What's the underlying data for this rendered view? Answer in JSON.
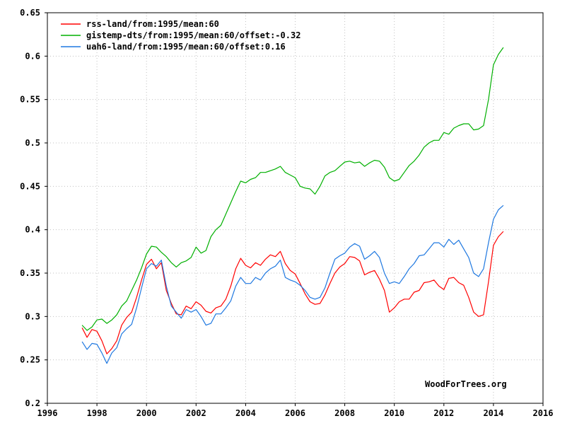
{
  "chart_data": {
    "type": "line",
    "title": "",
    "xlabel": "",
    "ylabel": "",
    "xlim": [
      1996,
      2016
    ],
    "ylim": [
      0.2,
      0.65
    ],
    "x_ticks": [
      "1996",
      "1998",
      "2000",
      "2002",
      "2004",
      "2006",
      "2008",
      "2010",
      "2012",
      "2014",
      "2016"
    ],
    "y_ticks": [
      "0.2",
      "0.25",
      "0.3",
      "0.35",
      "0.4",
      "0.45",
      "0.5",
      "0.55",
      "0.6",
      "0.65"
    ],
    "grid": true,
    "legend_position": "top-left",
    "annotation": "WoodForTrees.org",
    "series": [
      {
        "name": "rss-land/from:1995/mean:60",
        "color": "#ff0000",
        "points": [
          [
            1997.4,
            0.287
          ],
          [
            1997.6,
            0.276
          ],
          [
            1997.8,
            0.285
          ],
          [
            1998.0,
            0.283
          ],
          [
            1998.2,
            0.272
          ],
          [
            1998.4,
            0.257
          ],
          [
            1998.6,
            0.263
          ],
          [
            1998.8,
            0.272
          ],
          [
            1999.0,
            0.29
          ],
          [
            1999.2,
            0.299
          ],
          [
            1999.4,
            0.305
          ],
          [
            1999.6,
            0.322
          ],
          [
            1999.8,
            0.342
          ],
          [
            2000.0,
            0.36
          ],
          [
            2000.2,
            0.366
          ],
          [
            2000.4,
            0.355
          ],
          [
            2000.6,
            0.362
          ],
          [
            2000.8,
            0.33
          ],
          [
            2001.0,
            0.315
          ],
          [
            2001.2,
            0.303
          ],
          [
            2001.4,
            0.302
          ],
          [
            2001.6,
            0.312
          ],
          [
            2001.8,
            0.309
          ],
          [
            2002.0,
            0.317
          ],
          [
            2002.2,
            0.313
          ],
          [
            2002.4,
            0.306
          ],
          [
            2002.6,
            0.304
          ],
          [
            2002.8,
            0.31
          ],
          [
            2003.0,
            0.312
          ],
          [
            2003.2,
            0.32
          ],
          [
            2003.4,
            0.335
          ],
          [
            2003.6,
            0.355
          ],
          [
            2003.8,
            0.367
          ],
          [
            2004.0,
            0.359
          ],
          [
            2004.2,
            0.356
          ],
          [
            2004.4,
            0.362
          ],
          [
            2004.6,
            0.359
          ],
          [
            2004.8,
            0.366
          ],
          [
            2005.0,
            0.371
          ],
          [
            2005.2,
            0.369
          ],
          [
            2005.4,
            0.375
          ],
          [
            2005.6,
            0.361
          ],
          [
            2005.8,
            0.353
          ],
          [
            2006.0,
            0.349
          ],
          [
            2006.2,
            0.338
          ],
          [
            2006.4,
            0.326
          ],
          [
            2006.6,
            0.317
          ],
          [
            2006.8,
            0.314
          ],
          [
            2007.0,
            0.315
          ],
          [
            2007.2,
            0.325
          ],
          [
            2007.4,
            0.338
          ],
          [
            2007.6,
            0.35
          ],
          [
            2007.8,
            0.357
          ],
          [
            2008.0,
            0.361
          ],
          [
            2008.2,
            0.369
          ],
          [
            2008.4,
            0.368
          ],
          [
            2008.6,
            0.364
          ],
          [
            2008.8,
            0.348
          ],
          [
            2009.0,
            0.351
          ],
          [
            2009.2,
            0.353
          ],
          [
            2009.4,
            0.343
          ],
          [
            2009.6,
            0.33
          ],
          [
            2009.8,
            0.305
          ],
          [
            2010.0,
            0.31
          ],
          [
            2010.2,
            0.317
          ],
          [
            2010.4,
            0.32
          ],
          [
            2010.6,
            0.32
          ],
          [
            2010.8,
            0.328
          ],
          [
            2011.0,
            0.33
          ],
          [
            2011.2,
            0.339
          ],
          [
            2011.4,
            0.34
          ],
          [
            2011.6,
            0.342
          ],
          [
            2011.8,
            0.335
          ],
          [
            2012.0,
            0.331
          ],
          [
            2012.2,
            0.344
          ],
          [
            2012.4,
            0.345
          ],
          [
            2012.6,
            0.339
          ],
          [
            2012.8,
            0.336
          ],
          [
            2013.0,
            0.322
          ],
          [
            2013.2,
            0.305
          ],
          [
            2013.4,
            0.3
          ],
          [
            2013.6,
            0.302
          ],
          [
            2013.8,
            0.34
          ],
          [
            2014.0,
            0.382
          ],
          [
            2014.2,
            0.392
          ],
          [
            2014.4,
            0.398
          ]
        ]
      },
      {
        "name": "gistemp-dts/from:1995/mean:60/offset:-0.32",
        "color": "#00b000",
        "points": [
          [
            1997.4,
            0.29
          ],
          [
            1997.6,
            0.284
          ],
          [
            1997.8,
            0.288
          ],
          [
            1998.0,
            0.296
          ],
          [
            1998.2,
            0.297
          ],
          [
            1998.4,
            0.292
          ],
          [
            1998.6,
            0.296
          ],
          [
            1998.8,
            0.302
          ],
          [
            1999.0,
            0.312
          ],
          [
            1999.2,
            0.318
          ],
          [
            1999.4,
            0.33
          ],
          [
            1999.6,
            0.342
          ],
          [
            1999.8,
            0.356
          ],
          [
            2000.0,
            0.372
          ],
          [
            2000.2,
            0.381
          ],
          [
            2000.4,
            0.38
          ],
          [
            2000.6,
            0.374
          ],
          [
            2000.8,
            0.369
          ],
          [
            2001.0,
            0.362
          ],
          [
            2001.2,
            0.357
          ],
          [
            2001.4,
            0.362
          ],
          [
            2001.6,
            0.364
          ],
          [
            2001.8,
            0.368
          ],
          [
            2002.0,
            0.38
          ],
          [
            2002.2,
            0.373
          ],
          [
            2002.4,
            0.376
          ],
          [
            2002.6,
            0.392
          ],
          [
            2002.8,
            0.4
          ],
          [
            2003.0,
            0.405
          ],
          [
            2003.2,
            0.418
          ],
          [
            2003.4,
            0.431
          ],
          [
            2003.6,
            0.444
          ],
          [
            2003.8,
            0.456
          ],
          [
            2004.0,
            0.454
          ],
          [
            2004.2,
            0.458
          ],
          [
            2004.4,
            0.46
          ],
          [
            2004.6,
            0.466
          ],
          [
            2004.8,
            0.466
          ],
          [
            2005.0,
            0.468
          ],
          [
            2005.2,
            0.47
          ],
          [
            2005.4,
            0.473
          ],
          [
            2005.6,
            0.466
          ],
          [
            2005.8,
            0.463
          ],
          [
            2006.0,
            0.46
          ],
          [
            2006.2,
            0.45
          ],
          [
            2006.4,
            0.448
          ],
          [
            2006.6,
            0.447
          ],
          [
            2006.8,
            0.441
          ],
          [
            2007.0,
            0.45
          ],
          [
            2007.2,
            0.462
          ],
          [
            2007.4,
            0.466
          ],
          [
            2007.6,
            0.468
          ],
          [
            2007.8,
            0.473
          ],
          [
            2008.0,
            0.478
          ],
          [
            2008.2,
            0.479
          ],
          [
            2008.4,
            0.477
          ],
          [
            2008.6,
            0.478
          ],
          [
            2008.8,
            0.473
          ],
          [
            2009.0,
            0.477
          ],
          [
            2009.2,
            0.48
          ],
          [
            2009.4,
            0.479
          ],
          [
            2009.6,
            0.472
          ],
          [
            2009.8,
            0.46
          ],
          [
            2010.0,
            0.456
          ],
          [
            2010.2,
            0.458
          ],
          [
            2010.4,
            0.466
          ],
          [
            2010.6,
            0.474
          ],
          [
            2010.8,
            0.479
          ],
          [
            2011.0,
            0.486
          ],
          [
            2011.2,
            0.495
          ],
          [
            2011.4,
            0.5
          ],
          [
            2011.6,
            0.503
          ],
          [
            2011.8,
            0.503
          ],
          [
            2012.0,
            0.512
          ],
          [
            2012.2,
            0.51
          ],
          [
            2012.4,
            0.517
          ],
          [
            2012.6,
            0.52
          ],
          [
            2012.8,
            0.522
          ],
          [
            2013.0,
            0.522
          ],
          [
            2013.2,
            0.515
          ],
          [
            2013.4,
            0.516
          ],
          [
            2013.6,
            0.52
          ],
          [
            2013.8,
            0.55
          ],
          [
            2014.0,
            0.59
          ],
          [
            2014.2,
            0.602
          ],
          [
            2014.4,
            0.61
          ]
        ]
      },
      {
        "name": "uah6-land/from:1995/mean:60/offset:0.16",
        "color": "#1f78e0",
        "points": [
          [
            1997.4,
            0.271
          ],
          [
            1997.6,
            0.262
          ],
          [
            1997.8,
            0.269
          ],
          [
            1998.0,
            0.268
          ],
          [
            1998.2,
            0.258
          ],
          [
            1998.4,
            0.246
          ],
          [
            1998.6,
            0.258
          ],
          [
            1998.8,
            0.264
          ],
          [
            1999.0,
            0.28
          ],
          [
            1999.2,
            0.286
          ],
          [
            1999.4,
            0.291
          ],
          [
            1999.6,
            0.31
          ],
          [
            1999.8,
            0.333
          ],
          [
            2000.0,
            0.355
          ],
          [
            2000.2,
            0.361
          ],
          [
            2000.4,
            0.358
          ],
          [
            2000.6,
            0.365
          ],
          [
            2000.8,
            0.335
          ],
          [
            2001.0,
            0.312
          ],
          [
            2001.2,
            0.305
          ],
          [
            2001.4,
            0.298
          ],
          [
            2001.6,
            0.308
          ],
          [
            2001.8,
            0.305
          ],
          [
            2002.0,
            0.308
          ],
          [
            2002.2,
            0.3
          ],
          [
            2002.4,
            0.29
          ],
          [
            2002.6,
            0.292
          ],
          [
            2002.8,
            0.303
          ],
          [
            2003.0,
            0.303
          ],
          [
            2003.2,
            0.31
          ],
          [
            2003.4,
            0.318
          ],
          [
            2003.6,
            0.335
          ],
          [
            2003.8,
            0.345
          ],
          [
            2004.0,
            0.338
          ],
          [
            2004.2,
            0.338
          ],
          [
            2004.4,
            0.345
          ],
          [
            2004.6,
            0.342
          ],
          [
            2004.8,
            0.35
          ],
          [
            2005.0,
            0.355
          ],
          [
            2005.2,
            0.358
          ],
          [
            2005.4,
            0.365
          ],
          [
            2005.6,
            0.345
          ],
          [
            2005.8,
            0.342
          ],
          [
            2006.0,
            0.34
          ],
          [
            2006.2,
            0.336
          ],
          [
            2006.4,
            0.33
          ],
          [
            2006.6,
            0.322
          ],
          [
            2006.8,
            0.32
          ],
          [
            2007.0,
            0.322
          ],
          [
            2007.2,
            0.333
          ],
          [
            2007.4,
            0.35
          ],
          [
            2007.6,
            0.366
          ],
          [
            2007.8,
            0.37
          ],
          [
            2008.0,
            0.373
          ],
          [
            2008.2,
            0.38
          ],
          [
            2008.4,
            0.384
          ],
          [
            2008.6,
            0.381
          ],
          [
            2008.8,
            0.366
          ],
          [
            2009.0,
            0.37
          ],
          [
            2009.2,
            0.375
          ],
          [
            2009.4,
            0.368
          ],
          [
            2009.6,
            0.35
          ],
          [
            2009.8,
            0.338
          ],
          [
            2010.0,
            0.34
          ],
          [
            2010.2,
            0.338
          ],
          [
            2010.4,
            0.346
          ],
          [
            2010.6,
            0.355
          ],
          [
            2010.8,
            0.361
          ],
          [
            2011.0,
            0.37
          ],
          [
            2011.2,
            0.371
          ],
          [
            2011.4,
            0.378
          ],
          [
            2011.6,
            0.385
          ],
          [
            2011.8,
            0.385
          ],
          [
            2012.0,
            0.38
          ],
          [
            2012.2,
            0.389
          ],
          [
            2012.4,
            0.383
          ],
          [
            2012.6,
            0.388
          ],
          [
            2012.8,
            0.378
          ],
          [
            2013.0,
            0.368
          ],
          [
            2013.2,
            0.35
          ],
          [
            2013.4,
            0.346
          ],
          [
            2013.6,
            0.355
          ],
          [
            2013.8,
            0.385
          ],
          [
            2014.0,
            0.412
          ],
          [
            2014.2,
            0.423
          ],
          [
            2014.4,
            0.428
          ]
        ]
      }
    ]
  }
}
